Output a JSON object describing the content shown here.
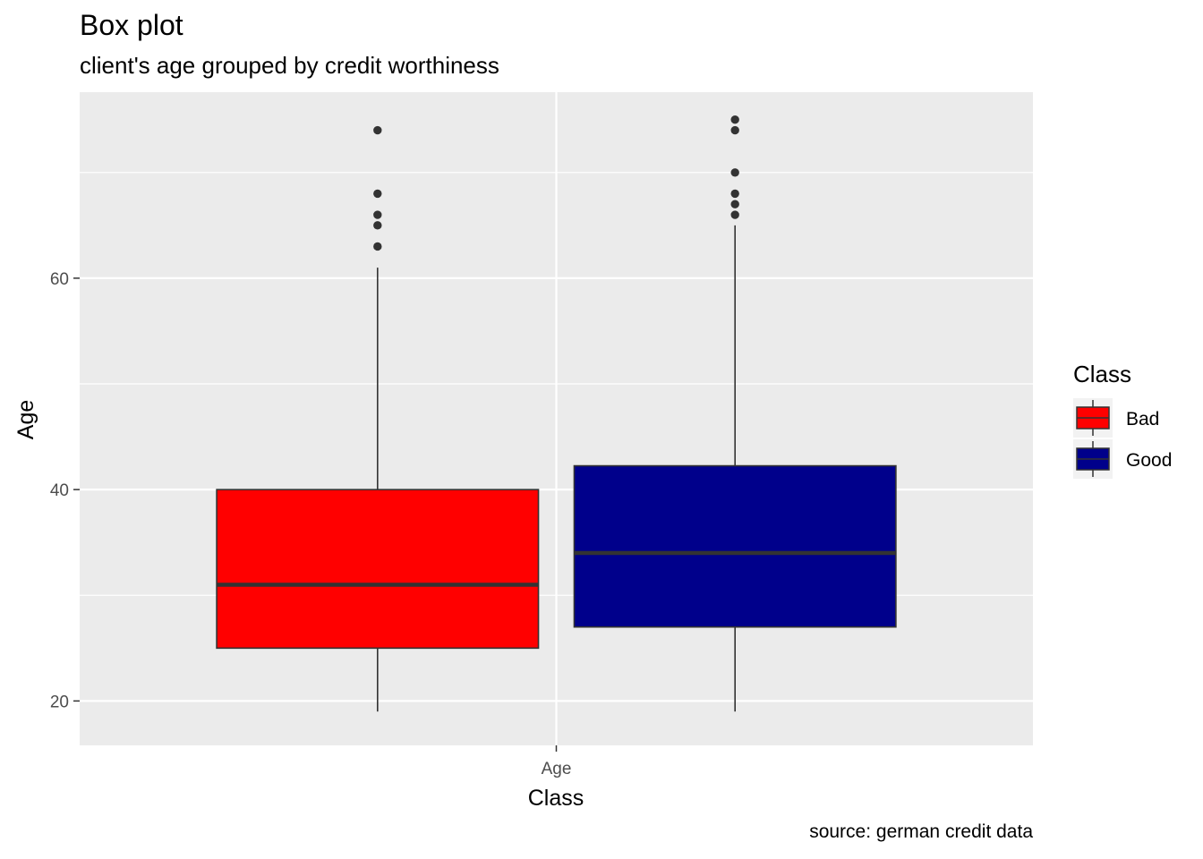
{
  "chart_data": {
    "type": "box",
    "title": "Box plot",
    "subtitle": "client's age grouped by credit worthiness",
    "caption": "source: german credit data",
    "xlabel": "Class",
    "ylabel": "Age",
    "categories": [
      "Age"
    ],
    "ylim": [
      15.8,
      77.6
    ],
    "yticks": [
      20,
      40,
      60
    ],
    "grid": true,
    "legend": {
      "title": "Class",
      "position": "right"
    },
    "series": [
      {
        "name": "Bad",
        "color": "#ff0000",
        "whisker_low": 19,
        "q1": 25,
        "median": 31,
        "q3": 40,
        "whisker_high": 61,
        "outliers": [
          63,
          65,
          66,
          68,
          74
        ]
      },
      {
        "name": "Good",
        "color": "#00008b",
        "whisker_low": 19,
        "q1": 27,
        "median": 34,
        "q3": 42.25,
        "whisker_high": 65,
        "outliers": [
          66,
          67,
          68,
          70,
          74,
          75
        ]
      }
    ]
  }
}
